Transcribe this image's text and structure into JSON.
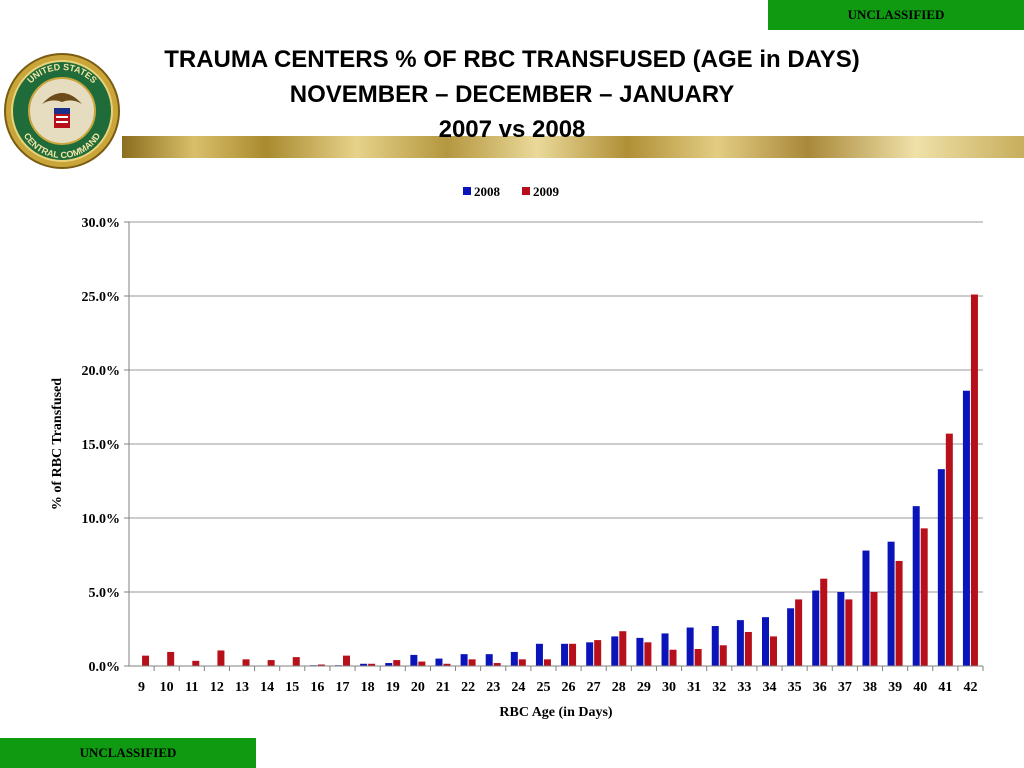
{
  "banners": {
    "top": "UNCLASSIFIED",
    "bottom": "UNCLASSIFIED"
  },
  "seal": {
    "text_top": "UNITED STATES",
    "text_bottom": "CENTRAL COMMAND"
  },
  "title": {
    "line1": "TRAUMA CENTERS % OF RBC TRANSFUSED (AGE in DAYS)",
    "line2": "NOVEMBER – DECEMBER – JANUARY",
    "line3": "2007 vs 2008"
  },
  "colors": {
    "series_2008": "#0a14b8",
    "series_2009": "#b8101a",
    "grid": "#9a9a9a",
    "banner": "#0f9a12"
  },
  "chart_data": {
    "type": "bar",
    "xlabel": "RBC Age (in Days)",
    "ylabel": "% of RBC Transfused",
    "ylim": [
      0,
      30
    ],
    "y_ticks": [
      "0.0%",
      "5.0%",
      "10.0%",
      "15.0%",
      "20.0%",
      "25.0%",
      "30.0%"
    ],
    "y_tick_values": [
      0,
      5,
      10,
      15,
      20,
      25,
      30
    ],
    "grid": true,
    "legend_position": "top-center",
    "categories": [
      "9",
      "10",
      "11",
      "12",
      "13",
      "14",
      "15",
      "16",
      "17",
      "18",
      "19",
      "20",
      "21",
      "22",
      "23",
      "24",
      "25",
      "26",
      "27",
      "28",
      "29",
      "30",
      "31",
      "32",
      "33",
      "34",
      "35",
      "36",
      "37",
      "38",
      "39",
      "40",
      "41",
      "42"
    ],
    "series": [
      {
        "name": "2008",
        "values": [
          0.0,
          0.0,
          0.0,
          0.0,
          0.0,
          0.0,
          0.0,
          0.05,
          0.05,
          0.15,
          0.2,
          0.75,
          0.5,
          0.8,
          0.8,
          0.95,
          1.5,
          1.5,
          1.6,
          2.0,
          1.9,
          2.2,
          2.6,
          2.7,
          3.1,
          3.3,
          3.9,
          5.1,
          5.0,
          7.8,
          8.4,
          10.8,
          13.3,
          18.6
        ]
      },
      {
        "name": "2009",
        "values": [
          0.7,
          0.95,
          0.35,
          1.05,
          0.45,
          0.4,
          0.6,
          0.1,
          0.7,
          0.15,
          0.4,
          0.3,
          0.15,
          0.45,
          0.2,
          0.45,
          0.45,
          1.5,
          1.75,
          2.35,
          1.6,
          1.1,
          1.15,
          1.4,
          2.3,
          2.0,
          4.5,
          5.9,
          4.5,
          5.0,
          7.1,
          9.3,
          15.7,
          25.1
        ]
      }
    ]
  }
}
